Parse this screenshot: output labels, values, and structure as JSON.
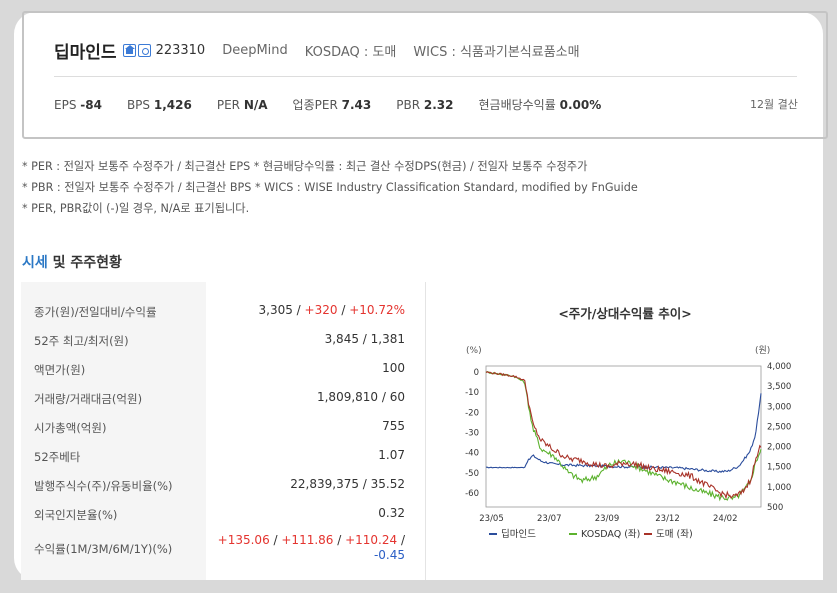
{
  "header": {
    "company_name": "딥마인드",
    "code": "223310",
    "english_name": "DeepMind",
    "market": "KOSDAQ : 도매",
    "wics": "WICS : 식품과기본식료품소매",
    "icons": [
      "home-icon",
      "rss-icon"
    ],
    "metrics": [
      {
        "label": "EPS",
        "value": "-84"
      },
      {
        "label": "BPS",
        "value": "1,426"
      },
      {
        "label": "PER",
        "value": "N/A"
      },
      {
        "label": "업종PER",
        "value": "7.43"
      },
      {
        "label": "PBR",
        "value": "2.32"
      },
      {
        "label": "현금배당수익률",
        "value": "0.00%"
      }
    ],
    "settlement": "12월 결산"
  },
  "notes": [
    "* PER : 전일자 보통주 수정주가 / 최근결산 EPS * 현금배당수익률 : 최근 결산 수정DPS(현금) / 전일자 보통주 수정주가",
    "* PBR : 전일자 보통주 수정주가 / 최근결산 BPS * WICS : WISE Industry Classification Standard, modified by FnGuide",
    "* PER, PBR값이 (-)일 경우, N/A로 표기됩니다."
  ],
  "section": {
    "accent": "시세",
    "rest": " 및 주주현황"
  },
  "table": {
    "rows": [
      {
        "label": "종가(원)/전일대비/수익률",
        "value": "3,305 / +320 / +10.72%"
      },
      {
        "label": "52주 최고/최저(원)",
        "value": "3,845 / 1,381"
      },
      {
        "label": "액면가(원)",
        "value": "100"
      },
      {
        "label": "거래량/거래대금(억원)",
        "value": "1,809,810 / 60"
      },
      {
        "label": "시가총액(억원)",
        "value": "755"
      },
      {
        "label": "52주베타",
        "value": "1.07"
      },
      {
        "label": "발행주식수(주)/유동비율(%)",
        "value": "22,839,375 / 35.52"
      },
      {
        "label": "외국인지분율(%)",
        "value": "0.32"
      },
      {
        "label": "수익률(1M/3M/6M/1Y)(%)",
        "value_line1": "+135.06 / +111.86 / +110.24 /",
        "value_line2": "-0.45"
      }
    ],
    "close_parts": {
      "base": "3,305 / ",
      "change": "+320",
      "sep": " / ",
      "rate": "+10.72%"
    },
    "returns_parts": [
      "+135.06",
      "+111.86",
      "+110.24",
      "-0.45"
    ]
  },
  "chart_data": {
    "type": "line",
    "title": "<주가/상대수익률 추이>",
    "left_axis_label": "(%)",
    "right_axis_label": "(원)",
    "left_ticks": [
      0,
      -10,
      -20,
      -30,
      -40,
      -50,
      -60
    ],
    "right_ticks": [
      4000,
      3500,
      3000,
      2500,
      2000,
      1500,
      1000,
      500
    ],
    "x_ticks": [
      "23/05",
      "23/07",
      "23/09",
      "23/12",
      "24/02"
    ],
    "left_range": [
      -67,
      3
    ],
    "right_range": [
      500,
      4000
    ],
    "series": [
      {
        "name": "딥마인드",
        "color": "#2b4d9c",
        "axis": "right",
        "points": [
          [
            0,
            1480
          ],
          [
            0.14,
            1480
          ],
          [
            0.15,
            1620
          ],
          [
            0.17,
            1780
          ],
          [
            0.2,
            1640
          ],
          [
            0.25,
            1560
          ],
          [
            0.3,
            1540
          ],
          [
            0.4,
            1520
          ],
          [
            0.5,
            1500
          ],
          [
            0.6,
            1490
          ],
          [
            0.7,
            1470
          ],
          [
            0.78,
            1420
          ],
          [
            0.84,
            1380
          ],
          [
            0.88,
            1390
          ],
          [
            0.92,
            1520
          ],
          [
            0.96,
            1880
          ],
          [
            0.98,
            2300
          ],
          [
            1.0,
            3305
          ]
        ]
      },
      {
        "name": "KOSDAQ (좌)",
        "color": "#5cb22e",
        "axis": "left",
        "points": [
          [
            0,
            0
          ],
          [
            0.05,
            -1
          ],
          [
            0.1,
            -2
          ],
          [
            0.14,
            -5
          ],
          [
            0.17,
            -28
          ],
          [
            0.2,
            -38
          ],
          [
            0.25,
            -42
          ],
          [
            0.3,
            -50
          ],
          [
            0.35,
            -54
          ],
          [
            0.4,
            -52
          ],
          [
            0.45,
            -46
          ],
          [
            0.5,
            -44
          ],
          [
            0.55,
            -47
          ],
          [
            0.6,
            -50
          ],
          [
            0.65,
            -53
          ],
          [
            0.7,
            -55
          ],
          [
            0.75,
            -58
          ],
          [
            0.8,
            -60
          ],
          [
            0.85,
            -62
          ],
          [
            0.9,
            -63
          ],
          [
            0.93,
            -60
          ],
          [
            0.96,
            -55
          ],
          [
            0.98,
            -45
          ],
          [
            1.0,
            -38
          ]
        ]
      },
      {
        "name": "도매 (좌)",
        "color": "#a83228",
        "axis": "left",
        "points": [
          [
            0,
            0
          ],
          [
            0.05,
            -1
          ],
          [
            0.1,
            -2
          ],
          [
            0.14,
            -4
          ],
          [
            0.17,
            -26
          ],
          [
            0.2,
            -34
          ],
          [
            0.25,
            -39
          ],
          [
            0.3,
            -43
          ],
          [
            0.35,
            -44
          ],
          [
            0.4,
            -46
          ],
          [
            0.45,
            -47
          ],
          [
            0.5,
            -45
          ],
          [
            0.55,
            -46
          ],
          [
            0.6,
            -48
          ],
          [
            0.65,
            -49
          ],
          [
            0.7,
            -50
          ],
          [
            0.75,
            -52
          ],
          [
            0.8,
            -56
          ],
          [
            0.85,
            -60
          ],
          [
            0.9,
            -62
          ],
          [
            0.93,
            -60
          ],
          [
            0.96,
            -54
          ],
          [
            0.98,
            -44
          ],
          [
            1.0,
            -36
          ]
        ]
      }
    ]
  }
}
